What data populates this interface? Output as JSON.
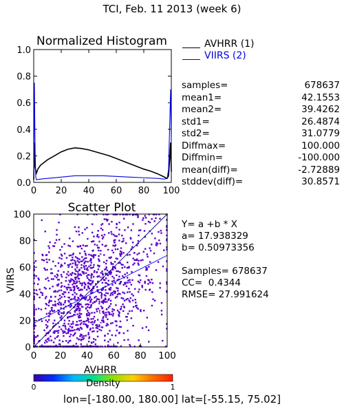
{
  "title": "TCI,  Feb. 11 2013 (week 6)",
  "histogram_stats": [
    {
      "label": "samples=",
      "value": "678637"
    },
    {
      "label": "mean1=",
      "value": "42.1553"
    },
    {
      "label": "mean2=",
      "value": "39.4262"
    },
    {
      "label": "std1=",
      "value": "26.4874"
    },
    {
      "label": "std2=",
      "value": "31.0779"
    },
    {
      "label": "Diffmax=",
      "value": "100.000"
    },
    {
      "label": "Diffmin=",
      "value": "-100.000"
    },
    {
      "label": "mean(diff)=",
      "value": "-2.72889"
    },
    {
      "label": "stddev(diff)=",
      "value": "30.8571"
    }
  ],
  "regression": {
    "equation": "Y= a +b * X",
    "a": "a= 17.938329",
    "b": "b= 0.50973356",
    "samples": "Samples= 678637",
    "cc": "CC=  0.4344",
    "rmse": "RMSE= 27.991624"
  },
  "colorbar": {
    "label": "Density",
    "min": "0",
    "max": "1",
    "colors": [
      "#3a00a6",
      "#0030ff",
      "#00b7ff",
      "#00e08c",
      "#8ee000",
      "#ffd000",
      "#ff6a00",
      "#ff2000"
    ]
  },
  "footer": "lon=[-180.00, 180.00] lat=[-55.15, 75.02]",
  "chart_data": [
    {
      "type": "line",
      "title": "Normalized Histogram",
      "xlim": [
        0,
        100
      ],
      "ylim": [
        0,
        1
      ],
      "xticks": [
        "0",
        "20",
        "40",
        "60",
        "80",
        "100"
      ],
      "yticks": [
        "0.0",
        "0.2",
        "0.4",
        "0.6",
        "0.8",
        "1.0"
      ],
      "series": [
        {
          "name": "AVHRR (1)",
          "color": "#000000",
          "x": [
            0,
            0.5,
            1,
            1.5,
            2,
            3,
            5,
            10,
            15,
            20,
            25,
            30,
            35,
            40,
            45,
            50,
            55,
            60,
            65,
            70,
            75,
            80,
            85,
            90,
            95,
            97,
            98,
            99,
            99.5,
            100
          ],
          "y": [
            0.02,
            0.3,
            0.12,
            0.09,
            0.07,
            0.1,
            0.13,
            0.17,
            0.2,
            0.23,
            0.25,
            0.26,
            0.255,
            0.245,
            0.23,
            0.215,
            0.2,
            0.18,
            0.16,
            0.14,
            0.12,
            0.1,
            0.085,
            0.065,
            0.04,
            0.03,
            0.05,
            0.2,
            0.3,
            0.08
          ]
        },
        {
          "name": "VIIRS (2)",
          "color": "#0000dd",
          "x": [
            0,
            0.5,
            1,
            1.5,
            2,
            5,
            10,
            20,
            30,
            40,
            50,
            60,
            70,
            80,
            90,
            95,
            97,
            98,
            99,
            99.5,
            100
          ],
          "y": [
            0.05,
            0.75,
            0.25,
            0.04,
            0.02,
            0.025,
            0.03,
            0.04,
            0.05,
            0.05,
            0.05,
            0.045,
            0.04,
            0.035,
            0.03,
            0.025,
            0.03,
            0.1,
            0.5,
            0.7,
            0.3
          ]
        }
      ]
    },
    {
      "type": "scatter",
      "title": "Scatter Plot",
      "xlabel": "AVHRR",
      "ylabel": "VIIRS",
      "xlim": [
        0,
        100
      ],
      "ylim": [
        0,
        100
      ],
      "xticks": [
        "0",
        "20",
        "40",
        "60",
        "80",
        "100"
      ],
      "yticks": [
        "0",
        "20",
        "40",
        "60",
        "80",
        "100"
      ],
      "n_points": 678637,
      "mean_x": 42.1553,
      "mean_y": 39.4262,
      "std_x": 26.4874,
      "std_y": 31.0779,
      "correlation": 0.4344,
      "fit": {
        "intercept": 17.938329,
        "slope": 0.50973356
      },
      "point_color": "#5a00cc",
      "lines": [
        "1:1",
        "fit"
      ]
    }
  ]
}
